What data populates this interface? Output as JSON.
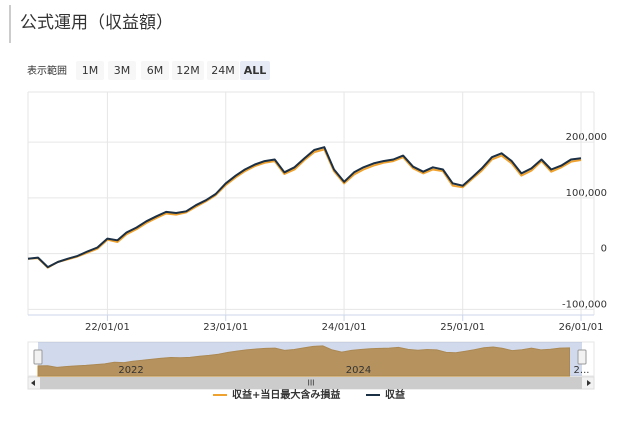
{
  "chart_data": {
    "type": "line",
    "title": "公式運用（収益額）",
    "range_selector": {
      "label": "表示範囲",
      "buttons": [
        "1M",
        "3M",
        "6M",
        "12M",
        "24M",
        "ALL"
      ],
      "selected_index": 5
    },
    "x": [
      "2021-05-01",
      "2021-06-01",
      "2021-07-01",
      "2021-08-01",
      "2021-09-01",
      "2021-10-01",
      "2021-11-01",
      "2021-12-01",
      "2022-01-01",
      "2022-02-01",
      "2022-03-01",
      "2022-04-01",
      "2022-05-01",
      "2022-06-01",
      "2022-07-01",
      "2022-08-01",
      "2022-09-01",
      "2022-10-01",
      "2022-11-01",
      "2022-12-01",
      "2023-01-01",
      "2023-02-01",
      "2023-03-01",
      "2023-04-01",
      "2023-05-01",
      "2023-06-01",
      "2023-07-01",
      "2023-08-01",
      "2023-09-01",
      "2023-10-01",
      "2023-11-01",
      "2023-12-01",
      "2024-01-01",
      "2024-02-01",
      "2024-03-01",
      "2024-04-01",
      "2024-05-01",
      "2024-06-01",
      "2024-07-01",
      "2024-08-01",
      "2024-09-01",
      "2024-10-01",
      "2024-11-01",
      "2024-12-01",
      "2025-01-01",
      "2025-02-01",
      "2025-03-01",
      "2025-04-01",
      "2025-05-01",
      "2025-06-01",
      "2025-07-01",
      "2025-08-01",
      "2025-09-01",
      "2025-10-01",
      "2025-11-01",
      "2025-12-01",
      "2026-01-01"
    ],
    "series": [
      {
        "name": "収益+当日最大含み損益",
        "color": "#f0a22e",
        "values": [
          -9000,
          -8000,
          -25000,
          -15000,
          -10000,
          -5000,
          2000,
          9000,
          25000,
          21000,
          35000,
          44000,
          55000,
          64000,
          72000,
          70000,
          74000,
          84000,
          94000,
          105000,
          123000,
          137000,
          148000,
          157000,
          163000,
          166000,
          143000,
          151000,
          168000,
          182000,
          187000,
          148000,
          126000,
          142000,
          151000,
          158000,
          163000,
          166000,
          173000,
          153000,
          144000,
          151000,
          148000,
          122000,
          119000,
          135000,
          149000,
          169000,
          176000,
          162000,
          140000,
          149000,
          166000,
          147000,
          155000,
          165000,
          168000
        ]
      },
      {
        "name": "収益",
        "color": "#1b2f45",
        "values": [
          -9000,
          -7000,
          -24000,
          -15000,
          -9000,
          -4000,
          4000,
          11000,
          27000,
          24000,
          38000,
          47000,
          58000,
          67000,
          75000,
          73000,
          76000,
          87000,
          96000,
          107000,
          126000,
          140000,
          151000,
          160000,
          166000,
          169000,
          146000,
          155000,
          171000,
          186000,
          191000,
          151000,
          129000,
          146000,
          155000,
          162000,
          166000,
          169000,
          176000,
          156000,
          147000,
          155000,
          151000,
          126000,
          122000,
          138000,
          153000,
          173000,
          180000,
          166000,
          144000,
          153000,
          169000,
          151000,
          158000,
          169000,
          171000
        ]
      }
    ],
    "xlim": [
      "2021-05-01",
      "2026-02-10"
    ],
    "xticks": [
      {
        "value": "2022-01-01",
        "label": "22/01/01"
      },
      {
        "value": "2023-01-01",
        "label": "23/01/01"
      },
      {
        "value": "2024-01-01",
        "label": "24/01/01"
      },
      {
        "value": "2025-01-01",
        "label": "25/01/01"
      },
      {
        "value": "2026-01-01",
        "label": "26/01/01"
      }
    ],
    "ylim": [
      -110000,
      290000
    ],
    "yticks": [
      {
        "value": -100000,
        "label": "-100,000"
      },
      0,
      {
        "value": 100000,
        "label": "100,000"
      },
      {
        "value": 200000,
        "label": "200,000"
      }
    ],
    "grid": true,
    "navigator": {
      "labels": [
        {
          "value": "2022-01-01",
          "label": "2022"
        },
        {
          "value": "2024-01-01",
          "label": "2024"
        },
        {
          "value": "2026-01-01",
          "label": "2..."
        }
      ],
      "scrollbar": "III"
    }
  }
}
